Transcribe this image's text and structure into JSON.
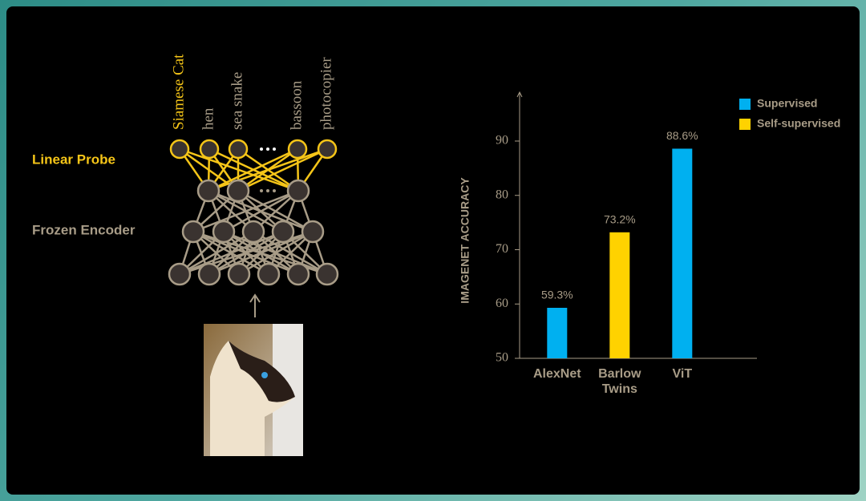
{
  "diagram": {
    "layer_labels": [
      "Linear Probe",
      "Frozen Encoder"
    ],
    "class_labels": [
      "Siamese Cat",
      "hen",
      "sea snake",
      "bassoon",
      "photocopier"
    ]
  },
  "chart_data": {
    "type": "bar",
    "ylabel": "IMAGENET ACCURACY",
    "categories": [
      "AlexNet",
      "Barlow Twins",
      "ViT"
    ],
    "series": [
      {
        "name": "Supervised",
        "color": "#00b0f0",
        "values": [
          59.3,
          null,
          88.6
        ],
        "value_labels": [
          "59.3%",
          null,
          "88.6%"
        ]
      },
      {
        "name": "Self-supervised",
        "color": "#ffd200",
        "values": [
          null,
          73.2,
          null
        ],
        "value_labels": [
          null,
          "73.2%",
          null
        ]
      }
    ],
    "ylim": [
      50,
      99
    ],
    "yticks": [
      50,
      60,
      70,
      80,
      90
    ],
    "grid": false,
    "legend": "top-right"
  }
}
